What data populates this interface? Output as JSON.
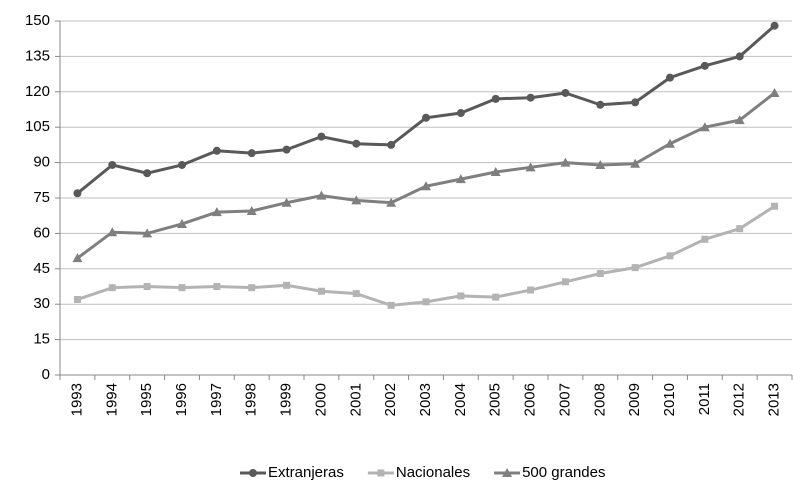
{
  "chart_data": {
    "type": "line",
    "categories": [
      "1993",
      "1994",
      "1995",
      "1996",
      "1997",
      "1998",
      "1999",
      "2000",
      "2001",
      "2002",
      "2003",
      "2004",
      "2005",
      "2006",
      "2007",
      "2008",
      "2009",
      "2010",
      "2011",
      "2012",
      "2013"
    ],
    "series": [
      {
        "name": "Extranjeras",
        "color": "#595959",
        "marker": "circle",
        "values": [
          77,
          89,
          85.5,
          89,
          95,
          94,
          95.5,
          101,
          98,
          97.5,
          109,
          111,
          117,
          117.5,
          119.5,
          114.5,
          115.5,
          126,
          131,
          135,
          148
        ]
      },
      {
        "name": "Nacionales",
        "color": "#b3b3b3",
        "marker": "square",
        "values": [
          32,
          37,
          37.5,
          37,
          37.5,
          37,
          38,
          35.5,
          34.5,
          29.5,
          31,
          33.5,
          33,
          36,
          39.5,
          43,
          45.5,
          50.5,
          57.5,
          62,
          71.5
        ]
      },
      {
        "name": "500 grandes",
        "color": "#7f7f7f",
        "marker": "triangle",
        "values": [
          49.5,
          60.5,
          60,
          64,
          69,
          69.5,
          73,
          76,
          74,
          73,
          80,
          83,
          86,
          88,
          90,
          89,
          89.5,
          98,
          105,
          108,
          119.5
        ]
      }
    ],
    "ylim": [
      0,
      150
    ],
    "yticks": [
      0,
      15,
      30,
      45,
      60,
      75,
      90,
      105,
      120,
      135,
      150
    ],
    "grid": true,
    "legend": "bottom"
  }
}
